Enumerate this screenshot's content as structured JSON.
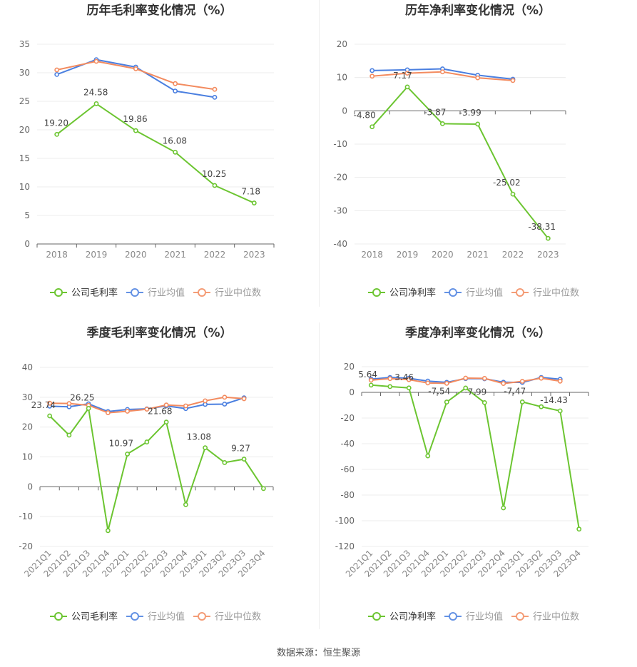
{
  "source": "数据来源：恒生聚源",
  "colors": {
    "company": "#6cc531",
    "industry_avg": "#4a7fe0",
    "industry_median": "#f38b5f"
  },
  "chart_data": [
    {
      "type": "line",
      "title": "历年毛利率变化情况（%）",
      "categories": [
        "2018",
        "2019",
        "2020",
        "2021",
        "2022",
        "2023"
      ],
      "ylim": [
        0,
        35
      ],
      "yticks": [
        0,
        5,
        10,
        15,
        20,
        25,
        30,
        35
      ],
      "grid": true,
      "legend_position": "bottom",
      "series": [
        {
          "name": "公司毛利率",
          "key": "company",
          "values": [
            19.2,
            24.58,
            19.86,
            16.08,
            10.25,
            7.18
          ],
          "labels": [
            "19.20",
            "24.58",
            "19.86",
            "16.08",
            "10.25",
            "7.18"
          ]
        },
        {
          "name": "行业均值",
          "key": "industry_avg",
          "values": [
            29.7,
            32.3,
            31.0,
            26.8,
            25.7,
            null
          ]
        },
        {
          "name": "行业中位数",
          "key": "industry_median",
          "values": [
            30.5,
            32.0,
            30.7,
            28.1,
            27.1,
            null
          ]
        }
      ]
    },
    {
      "type": "line",
      "title": "历年净利率变化情况（%）",
      "categories": [
        "2018",
        "2019",
        "2020",
        "2021",
        "2022",
        "2023"
      ],
      "ylim": [
        -40,
        20
      ],
      "yticks": [
        -40,
        -30,
        -20,
        -10,
        0,
        10,
        20
      ],
      "grid": true,
      "legend_position": "bottom",
      "series": [
        {
          "name": "公司净利率",
          "key": "company",
          "values": [
            -4.8,
            7.17,
            -3.87,
            -3.99,
            -25.02,
            -38.31
          ],
          "labels": [
            "-4.80",
            "7.17",
            "-3.87",
            "-3.99",
            "-25.02",
            "-38.31"
          ]
        },
        {
          "name": "行业均值",
          "key": "industry_avg",
          "values": [
            12.1,
            12.3,
            12.6,
            10.7,
            9.5,
            null
          ]
        },
        {
          "name": "行业中位数",
          "key": "industry_median",
          "values": [
            10.4,
            11.3,
            11.7,
            9.9,
            9.1,
            null
          ]
        }
      ]
    },
    {
      "type": "line",
      "title": "季度毛利率变化情况（%）",
      "categories": [
        "2021Q1",
        "2021Q2",
        "2021Q3",
        "2021Q4",
        "2022Q1",
        "2022Q2",
        "2022Q3",
        "2022Q4",
        "2023Q1",
        "2023Q2",
        "2023Q3",
        "2023Q4"
      ],
      "ylim": [
        -20,
        40
      ],
      "yticks": [
        -20,
        -10,
        0,
        10,
        20,
        30,
        40
      ],
      "grid": true,
      "legend_position": "bottom",
      "series": [
        {
          "name": "公司毛利率",
          "key": "company",
          "values": [
            23.74,
            17.3,
            26.25,
            -14.7,
            10.97,
            15.0,
            21.68,
            -6.0,
            13.08,
            8.1,
            9.27,
            -0.6
          ],
          "labels": [
            "23.74",
            "",
            "26.25",
            "",
            "10.97",
            "",
            "21.68",
            "",
            "13.08",
            "",
            "9.27",
            ""
          ]
        },
        {
          "name": "行业均值",
          "key": "industry_avg",
          "values": [
            27.0,
            26.8,
            27.8,
            25.2,
            25.9,
            26.1,
            27.1,
            26.2,
            27.6,
            27.7,
            29.8,
            null
          ]
        },
        {
          "name": "行业中位数",
          "key": "industry_median",
          "values": [
            28.0,
            27.9,
            27.3,
            24.8,
            25.3,
            26.0,
            27.4,
            27.1,
            28.8,
            30.0,
            29.5,
            null
          ]
        }
      ]
    },
    {
      "type": "line",
      "title": "季度净利率变化情况（%）",
      "categories": [
        "2021Q1",
        "2021Q2",
        "2021Q3",
        "2021Q4",
        "2022Q1",
        "2022Q2",
        "2022Q3",
        "2022Q4",
        "2023Q1",
        "2023Q2",
        "2023Q3",
        "2023Q4"
      ],
      "ylim": [
        -120,
        20
      ],
      "yticks": [
        -120,
        -100,
        -80,
        -60,
        -40,
        -20,
        0,
        20
      ],
      "grid": true,
      "legend_position": "bottom",
      "series": [
        {
          "name": "公司净利率",
          "key": "company",
          "values": [
            5.64,
            4.5,
            3.46,
            -49.5,
            -7.54,
            3.4,
            -7.99,
            -90.0,
            -7.47,
            -11.2,
            -14.43,
            -106.5
          ],
          "labels": [
            "5.64",
            "",
            "3.46",
            "",
            "-7.54",
            "",
            "-7.99",
            "",
            "-7.47",
            "",
            "-14.43",
            ""
          ]
        },
        {
          "name": "行业均值",
          "key": "industry_avg",
          "values": [
            10.3,
            11.6,
            11.0,
            8.8,
            7.8,
            10.7,
            10.6,
            7.9,
            7.7,
            11.6,
            10.2,
            null
          ]
        },
        {
          "name": "行业中位数",
          "key": "industry_median",
          "values": [
            9.5,
            10.7,
            9.9,
            7.3,
            7.0,
            11.1,
            10.9,
            6.9,
            8.6,
            11.0,
            8.7,
            null
          ]
        }
      ]
    }
  ]
}
